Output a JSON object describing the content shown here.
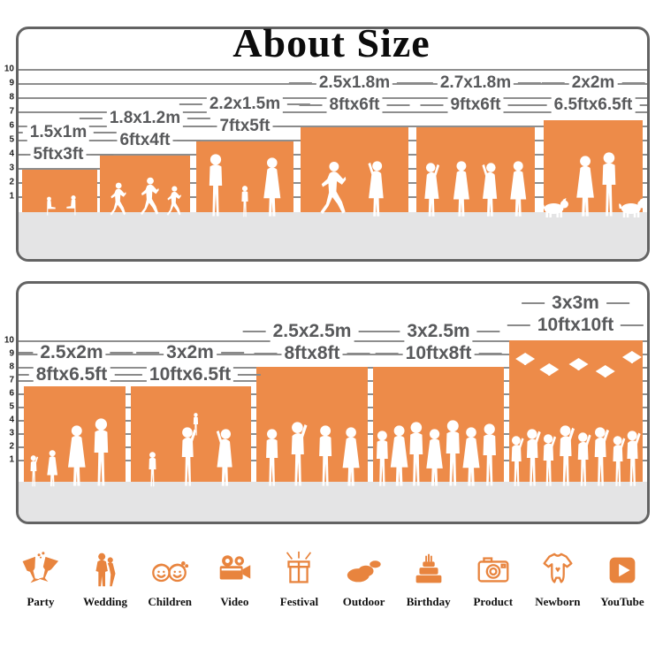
{
  "title": "About Size",
  "colors": {
    "accent_orange": "#ED8B49",
    "floor_gray": "#E4E4E5",
    "panel_border": "#636363",
    "gridline_gray": "#8E8E8E",
    "label_gray": "#58595B"
  },
  "panels": [
    {
      "name": "small-sizes",
      "ruler": [
        "10",
        "9",
        "8",
        "7",
        "6",
        "5",
        "4",
        "3",
        "2",
        "1"
      ],
      "boxes": [
        {
          "meters": "1.5x1m",
          "feet": "5ftx3ft",
          "silhouette": "children-reading"
        },
        {
          "meters": "1.8x1.2m",
          "feet": "6ftx4ft",
          "silhouette": "children-running"
        },
        {
          "meters": "2.2x1.5m",
          "feet": "7ftx5ft",
          "silhouette": "family-holding-hands"
        },
        {
          "meters": "2.5x1.8m",
          "feet": "8ftx6ft",
          "silhouette": "wedding-couple"
        },
        {
          "meters": "2.7x1.8m",
          "feet": "9ftx6ft",
          "silhouette": "dancing-women"
        },
        {
          "meters": "2x2m",
          "feet": "6.5ftx6.5ft",
          "silhouette": "couple-with-dogs"
        }
      ]
    },
    {
      "name": "large-sizes",
      "ruler": [
        "10",
        "9",
        "8",
        "7",
        "6",
        "5",
        "4",
        "3",
        "2",
        "1"
      ],
      "boxes": [
        {
          "meters": "2.5x2m",
          "feet": "8ftx6.5ft",
          "silhouette": "family-four"
        },
        {
          "meters": "3x2m",
          "feet": "10ftx6.5ft",
          "silhouette": "family-lifting-child"
        },
        {
          "meters": "2.5x2.5m",
          "feet": "8ftx8ft",
          "silhouette": "group-standing"
        },
        {
          "meters": "3x2.5m",
          "feet": "10ftx8ft",
          "silhouette": "group-large"
        },
        {
          "meters": "3x3m",
          "feet": "10ftx10ft",
          "silhouette": "graduation-crowd"
        }
      ]
    }
  ],
  "categories": [
    {
      "label": "Party",
      "icon": "party-icon"
    },
    {
      "label": "Wedding",
      "icon": "wedding-icon"
    },
    {
      "label": "Children",
      "icon": "children-icon"
    },
    {
      "label": "Video",
      "icon": "video-icon"
    },
    {
      "label": "Festival",
      "icon": "festival-icon"
    },
    {
      "label": "Outdoor",
      "icon": "outdoor-icon"
    },
    {
      "label": "Birthday",
      "icon": "birthday-icon"
    },
    {
      "label": "Product",
      "icon": "product-icon"
    },
    {
      "label": "Newborn",
      "icon": "newborn-icon"
    },
    {
      "label": "YouTube",
      "icon": "youtube-icon"
    }
  ]
}
